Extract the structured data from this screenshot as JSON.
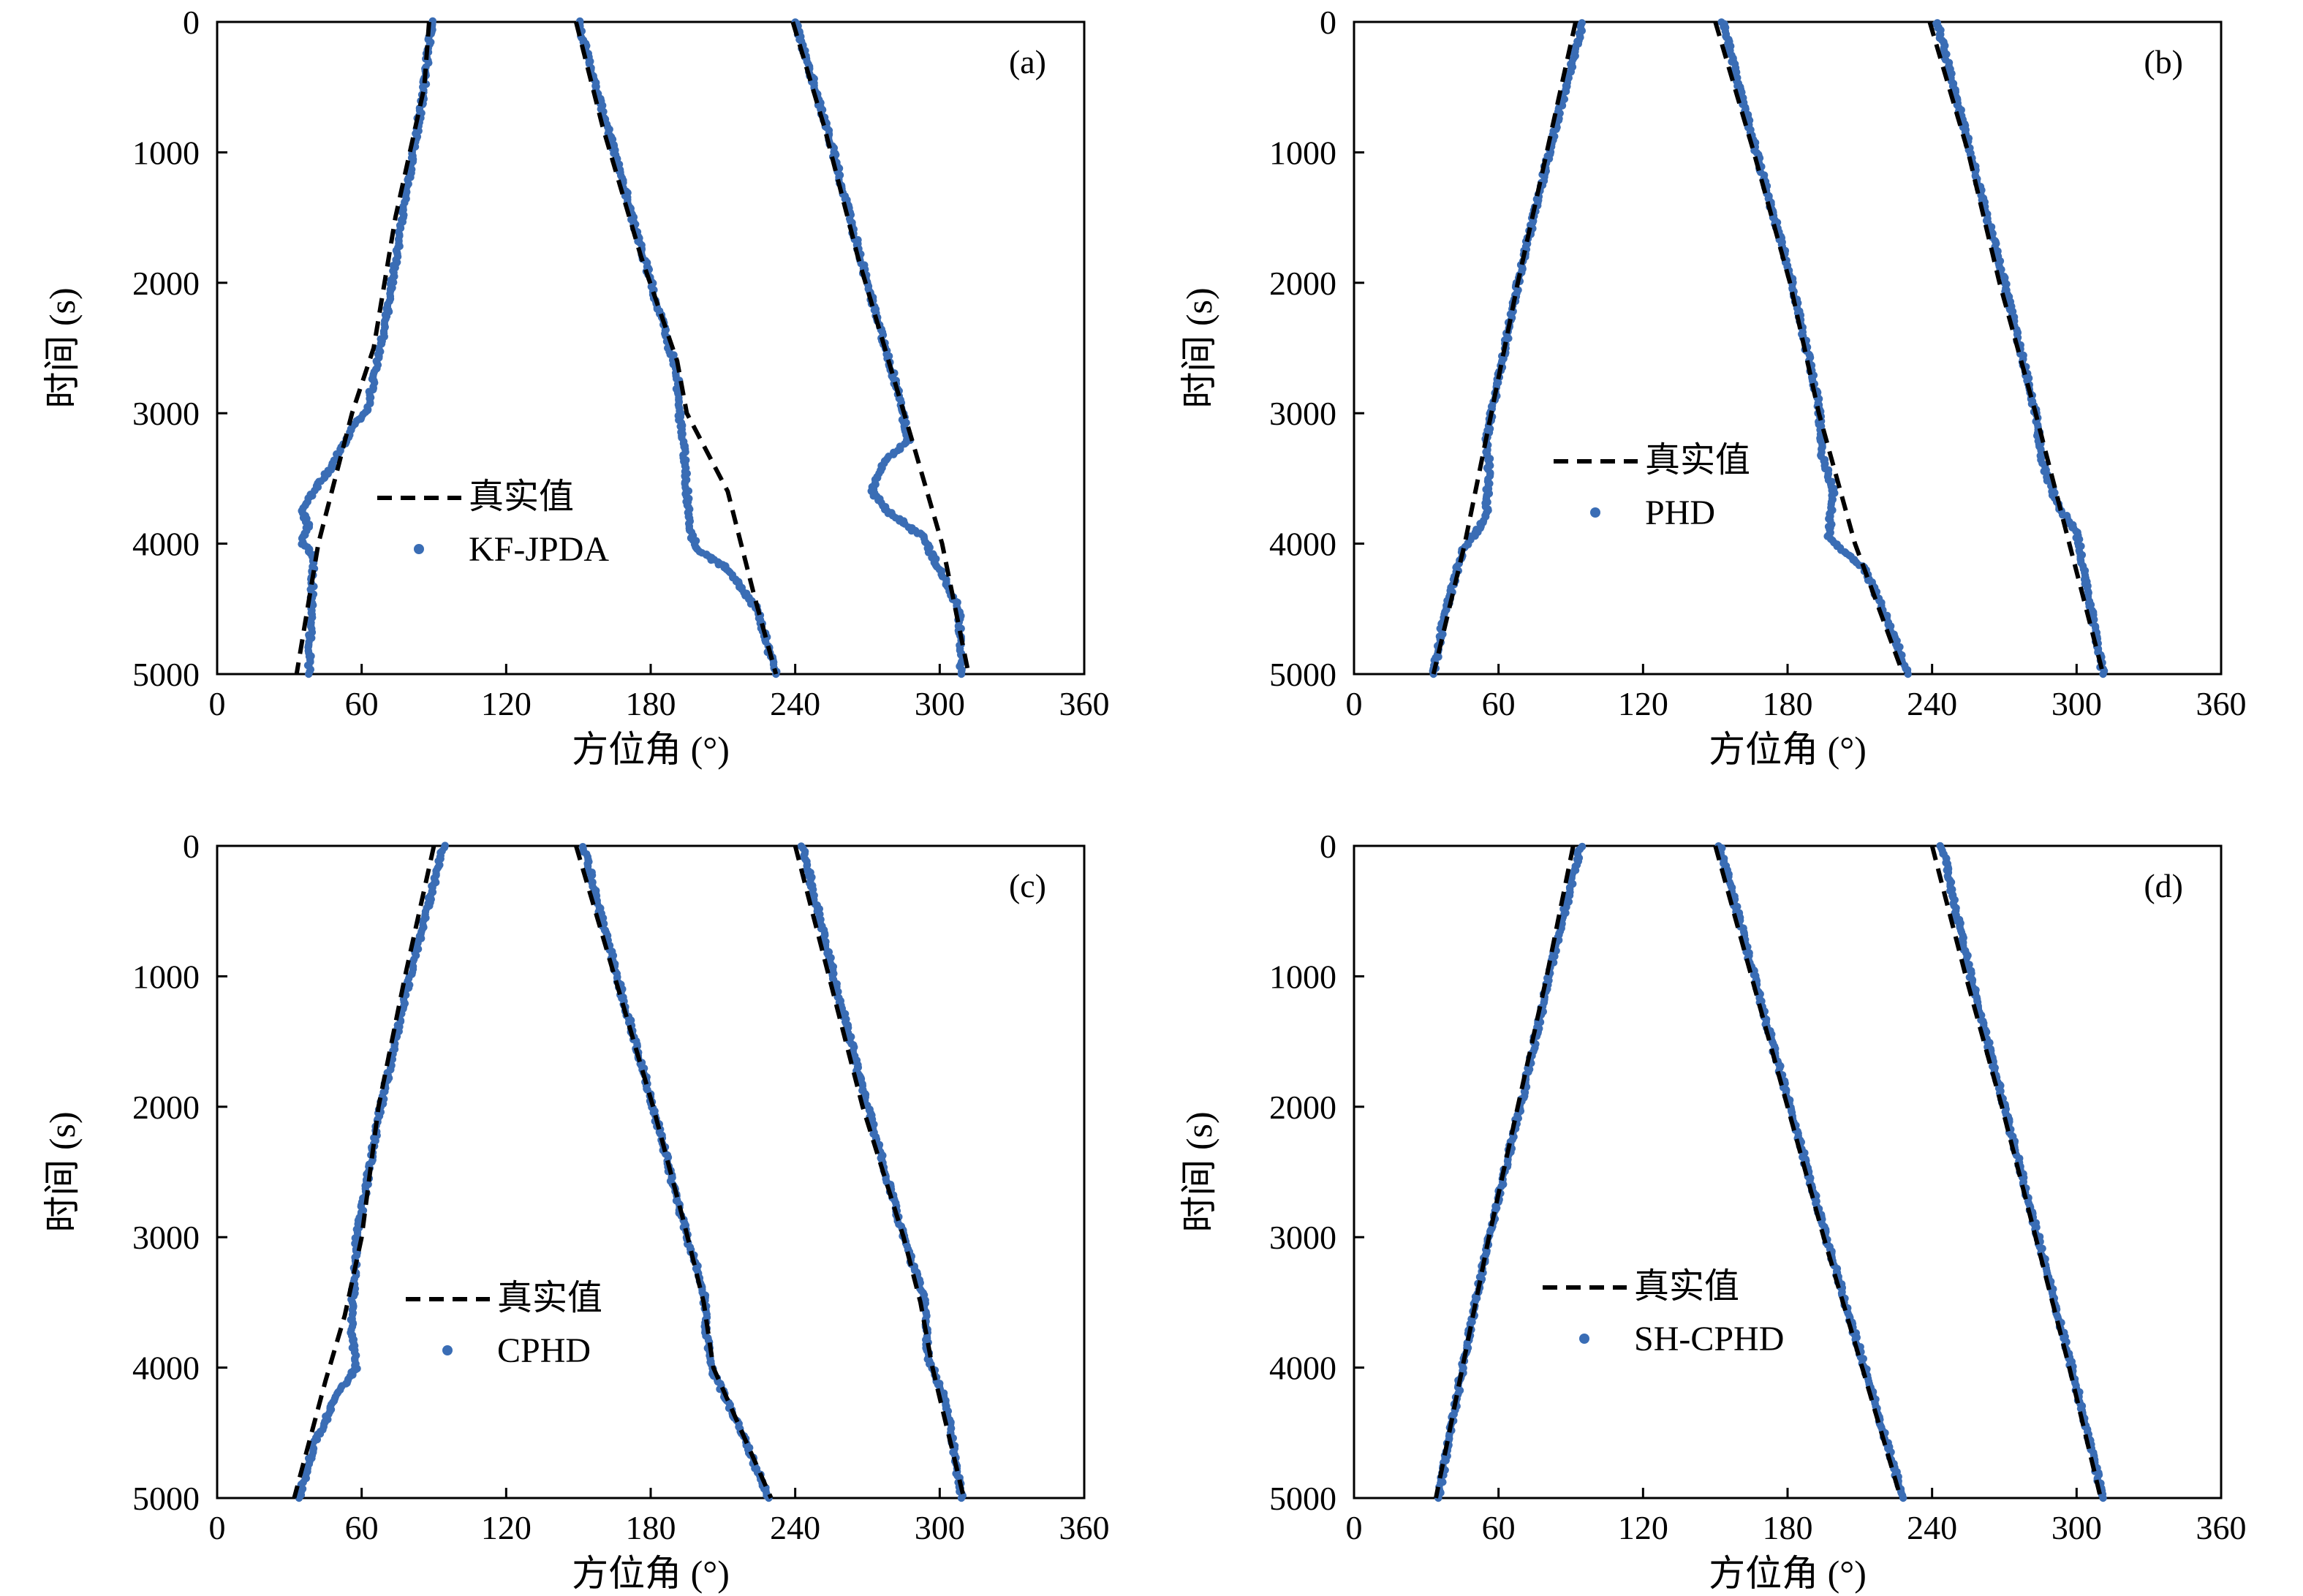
{
  "colors": {
    "truth": "#000000",
    "estimate": "#3a6db5",
    "axes": "#000000",
    "background": "#ffffff"
  },
  "chart_data": [
    {
      "type": "scatter",
      "panel_label": "(a)",
      "xlabel": "方位角 (°)",
      "ylabel": "时间 (s)",
      "xlim": [
        0,
        360
      ],
      "ylim": [
        5000,
        0
      ],
      "xticks": [
        "0",
        "60",
        "120",
        "180",
        "240",
        "300",
        "360"
      ],
      "yticks": [
        "0",
        "1000",
        "2000",
        "3000",
        "4000",
        "5000"
      ],
      "legend": {
        "placement": "center-left",
        "entries": [
          {
            "label": "真实值",
            "style": "dashed-line"
          },
          {
            "label": "KF-JPDA",
            "style": "dot"
          }
        ]
      },
      "series": [
        {
          "role": "truth",
          "legend_label": "真实值",
          "style": "dashed-line",
          "tracks": [
            [
              [
                88,
                0
              ],
              [
                86,
                500
              ],
              [
                74,
                1500
              ],
              [
                65,
                2500
              ],
              [
                56,
                3000
              ],
              [
                42,
                4000
              ],
              [
                33,
                5000
              ]
            ],
            [
              [
                149,
                0
              ],
              [
                160,
                800
              ],
              [
                176,
                1800
              ],
              [
                191,
                2600
              ],
              [
                195,
                3000
              ],
              [
                212,
                3600
              ],
              [
                223,
                4400
              ],
              [
                232,
                5000
              ]
            ],
            [
              [
                239,
                0
              ],
              [
                252,
                800
              ],
              [
                266,
                1800
              ],
              [
                282,
                2800
              ],
              [
                290,
                3300
              ],
              [
                301,
                4000
              ],
              [
                312,
                5000
              ]
            ]
          ]
        },
        {
          "role": "estimate",
          "legend_label": "KF-JPDA",
          "style": "dot",
          "tracks": [
            [
              [
                89,
                0
              ],
              [
                86,
                500
              ],
              [
                77,
                1500
              ],
              [
                70,
                2300
              ],
              [
                62,
                3000
              ],
              [
                56,
                3100
              ],
              [
                48,
                3400
              ],
              [
                40,
                3600
              ],
              [
                35,
                3750
              ],
              [
                38,
                3850
              ],
              [
                35,
                4000
              ],
              [
                40,
                4080
              ],
              [
                38,
                5000
              ]
            ],
            [
              [
                150,
                0
              ],
              [
                162,
                800
              ],
              [
                177,
                1800
              ],
              [
                191,
                2700
              ],
              [
                192,
                3000
              ],
              [
                194,
                3300
              ],
              [
                196,
                3900
              ],
              [
                200,
                4050
              ],
              [
                212,
                4200
              ],
              [
                224,
                4500
              ],
              [
                232,
                5000
              ]
            ],
            [
              [
                240,
                0
              ],
              [
                253,
                800
              ],
              [
                267,
                1800
              ],
              [
                282,
                2800
              ],
              [
                287,
                3200
              ],
              [
                276,
                3400
              ],
              [
                272,
                3600
              ],
              [
                278,
                3750
              ],
              [
                293,
                3950
              ],
              [
                300,
                4200
              ],
              [
                308,
                4500
              ],
              [
                309,
                5000
              ]
            ]
          ]
        }
      ]
    },
    {
      "type": "scatter",
      "panel_label": "(b)",
      "xlabel": "方位角 (°)",
      "ylabel": "时间 (s)",
      "xlim": [
        0,
        360
      ],
      "ylim": [
        5000,
        0
      ],
      "xticks": [
        "0",
        "60",
        "120",
        "180",
        "240",
        "300",
        "360"
      ],
      "yticks": [
        "0",
        "1000",
        "2000",
        "3000",
        "4000",
        "5000"
      ],
      "legend": {
        "placement": "center",
        "entries": [
          {
            "label": "真实值",
            "style": "dashed-line"
          },
          {
            "label": "PHD",
            "style": "dot"
          }
        ]
      },
      "series": [
        {
          "role": "truth",
          "legend_label": "真实值",
          "style": "dashed-line",
          "tracks": [
            [
              [
                92,
                0
              ],
              [
                80,
                1000
              ],
              [
                68,
                2000
              ],
              [
                57,
                3000
              ],
              [
                46,
                4000
              ],
              [
                33,
                5000
              ]
            ],
            [
              [
                150,
                0
              ],
              [
                166,
                1000
              ],
              [
                181,
                2000
              ],
              [
                193,
                3000
              ],
              [
                208,
                4000
              ],
              [
                228,
                5000
              ]
            ],
            [
              [
                239,
                0
              ],
              [
                255,
                1000
              ],
              [
                268,
                2000
              ],
              [
                283,
                3000
              ],
              [
                297,
                4000
              ],
              [
                311,
                5000
              ]
            ]
          ]
        },
        {
          "role": "estimate",
          "legend_label": "PHD",
          "style": "dot",
          "tracks": [
            [
              [
                95,
                0
              ],
              [
                81,
                1000
              ],
              [
                68,
                2000
              ],
              [
                55,
                3200
              ],
              [
                56,
                3400
              ],
              [
                55,
                3750
              ],
              [
                53,
                3850
              ],
              [
                45,
                4050
              ],
              [
                37,
                4600
              ],
              [
                33,
                5000
              ]
            ],
            [
              [
                153,
                0
              ],
              [
                167,
                1000
              ],
              [
                182,
                2000
              ],
              [
                193,
                2950
              ],
              [
                194,
                3300
              ],
              [
                199,
                3600
              ],
              [
                197,
                3950
              ],
              [
                212,
                4200
              ],
              [
                222,
                4600
              ],
              [
                230,
                5000
              ]
            ],
            [
              [
                242,
                0
              ],
              [
                256,
                1000
              ],
              [
                270,
                2000
              ],
              [
                283,
                3000
              ],
              [
                286,
                3400
              ],
              [
                292,
                3700
              ],
              [
                300,
                3900
              ],
              [
                302,
                4100
              ],
              [
                311,
                5000
              ]
            ]
          ]
        }
      ]
    },
    {
      "type": "scatter",
      "panel_label": "(c)",
      "xlabel": "方位角 (°)",
      "ylabel": "时间 (s)",
      "xlim": [
        0,
        360
      ],
      "ylim": [
        5000,
        0
      ],
      "xticks": [
        "0",
        "60",
        "120",
        "180",
        "240",
        "300",
        "360"
      ],
      "yticks": [
        "0",
        "1000",
        "2000",
        "3000",
        "4000",
        "5000"
      ],
      "legend": {
        "placement": "center-left",
        "entries": [
          {
            "label": "真实值",
            "style": "dashed-line"
          },
          {
            "label": "CPHD",
            "style": "dot"
          }
        ]
      },
      "series": [
        {
          "role": "truth",
          "legend_label": "真实值",
          "style": "dashed-line",
          "tracks": [
            [
              [
                90,
                0
              ],
              [
                78,
                1000
              ],
              [
                67,
                2000
              ],
              [
                60,
                3000
              ],
              [
                53,
                3600
              ],
              [
                45,
                4100
              ],
              [
                32,
                5000
              ]
            ],
            [
              [
                149,
                0
              ],
              [
                165,
                1000
              ],
              [
                181,
                2000
              ],
              [
                194,
                2900
              ],
              [
                202,
                3500
              ],
              [
                206,
                4000
              ],
              [
                230,
                5000
              ]
            ],
            [
              [
                240,
                0
              ],
              [
                254,
                1000
              ],
              [
                268,
                2000
              ],
              [
                285,
                3000
              ],
              [
                292,
                3500
              ],
              [
                297,
                4000
              ],
              [
                310,
                5000
              ]
            ]
          ]
        },
        {
          "role": "estimate",
          "legend_label": "CPHD",
          "style": "dot",
          "tracks": [
            [
              [
                94,
                0
              ],
              [
                80,
                1000
              ],
              [
                68,
                2000
              ],
              [
                58,
                3000
              ],
              [
                56,
                3600
              ],
              [
                56,
                3800
              ],
              [
                58,
                4000
              ],
              [
                50,
                4200
              ],
              [
                40,
                4600
              ],
              [
                34,
                5000
              ]
            ],
            [
              [
                152,
                0
              ],
              [
                166,
                1000
              ],
              [
                181,
                2000
              ],
              [
                195,
                3000
              ],
              [
                202,
                3400
              ],
              [
                203,
                3700
              ],
              [
                205,
                4000
              ],
              [
                218,
                4500
              ],
              [
                229,
                5000
              ]
            ],
            [
              [
                243,
                0
              ],
              [
                256,
                1000
              ],
              [
                270,
                2000
              ],
              [
                285,
                3000
              ],
              [
                294,
                3500
              ],
              [
                295,
                3900
              ],
              [
                303,
                4300
              ],
              [
                309,
                5000
              ]
            ]
          ]
        }
      ]
    },
    {
      "type": "scatter",
      "panel_label": "(d)",
      "xlabel": "方位角 (°)",
      "ylabel": "时间 (s)",
      "xlim": [
        0,
        360
      ],
      "ylim": [
        5000,
        0
      ],
      "xticks": [
        "0",
        "60",
        "120",
        "180",
        "240",
        "300",
        "360"
      ],
      "yticks": [
        "0",
        "1000",
        "2000",
        "3000",
        "4000",
        "5000"
      ],
      "legend": {
        "placement": "center",
        "entries": [
          {
            "label": "真实值",
            "style": "dashed-line"
          },
          {
            "label": "SH-CPHD",
            "style": "dot"
          }
        ]
      },
      "series": [
        {
          "role": "truth",
          "legend_label": "真实值",
          "style": "dashed-line",
          "tracks": [
            [
              [
                91,
                0
              ],
              [
                80,
                1000
              ],
              [
                68,
                2000
              ],
              [
                56,
                3000
              ],
              [
                45,
                4000
              ],
              [
                34,
                5000
              ]
            ],
            [
              [
                150,
                0
              ],
              [
                165,
                1000
              ],
              [
                180,
                2000
              ],
              [
                195,
                3000
              ],
              [
                211,
                4000
              ],
              [
                227,
                5000
              ]
            ],
            [
              [
                240,
                0
              ],
              [
                254,
                1000
              ],
              [
                269,
                2000
              ],
              [
                283,
                3000
              ],
              [
                297,
                4000
              ],
              [
                310,
                5000
              ]
            ]
          ]
        },
        {
          "role": "estimate",
          "legend_label": "SH-CPHD",
          "style": "dot",
          "tracks": [
            [
              [
                94,
                0
              ],
              [
                81,
                1000
              ],
              [
                69,
                2000
              ],
              [
                56,
                3000
              ],
              [
                45,
                4000
              ],
              [
                35,
                5000
              ]
            ],
            [
              [
                152,
                0
              ],
              [
                166,
                1000
              ],
              [
                181,
                2000
              ],
              [
                196,
                3000
              ],
              [
                212,
                4000
              ],
              [
                228,
                5000
              ]
            ],
            [
              [
                244,
                0
              ],
              [
                256,
                1000
              ],
              [
                270,
                2000
              ],
              [
                284,
                3000
              ],
              [
                298,
                4000
              ],
              [
                311,
                5000
              ]
            ]
          ]
        }
      ]
    }
  ]
}
